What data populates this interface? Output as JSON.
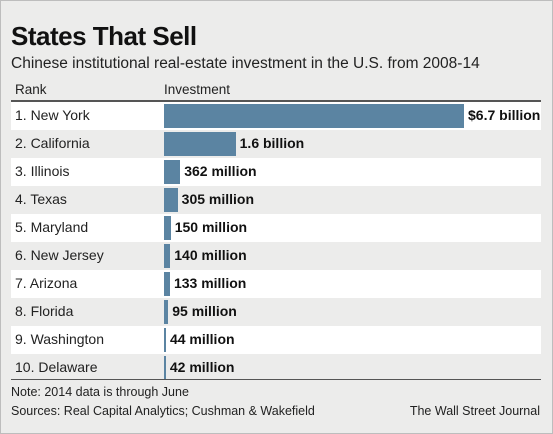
{
  "title": "States That Sell",
  "subtitle": "Chinese institutional real-estate investment in the U.S. from 2008-14",
  "columns": {
    "rank": "Rank",
    "investment": "Investment"
  },
  "note": "Note: 2014 data is through June",
  "sources": "Sources: Real Capital Analytics; Cushman & Wakefield",
  "credit": "The Wall Street Journal",
  "colors": {
    "bar": "#5b84a2",
    "row_shade": "#ffffff",
    "background": "#ececeb"
  },
  "chart_data": {
    "type": "bar",
    "orientation": "horizontal",
    "unit": "USD",
    "categories": [
      "1. New York",
      "2. California",
      "3. Illinois",
      "4. Texas",
      "5. Maryland",
      "6. New Jersey",
      "7. Arizona",
      "8. Florida",
      "9. Washington",
      "10. Delaware"
    ],
    "values": [
      6700000000,
      1600000000,
      362000000,
      305000000,
      150000000,
      140000000,
      133000000,
      95000000,
      44000000,
      42000000
    ],
    "value_labels": [
      "$6.7 billion",
      "1.6 billion",
      "362 million",
      "305 million",
      "150 million",
      "140 million",
      "133 million",
      "95 million",
      "44 million",
      "42 million"
    ],
    "xlim": [
      0,
      6700000000
    ],
    "grid": false
  }
}
